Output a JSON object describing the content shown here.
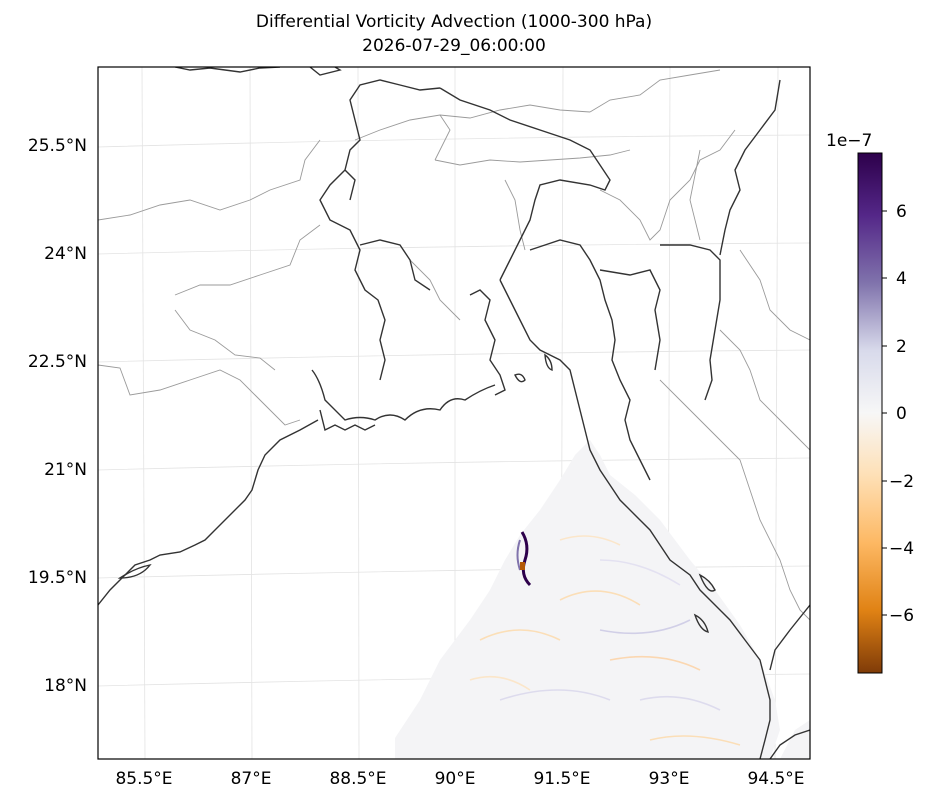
{
  "title": "Differential Vorticity Advection (1000-300 hPa)",
  "subtitle": "2026-07-29_06:00:00",
  "map": {
    "lon_labels": [
      "85.5°E",
      "87°E",
      "88.5°E",
      "90°E",
      "91.5°E",
      "93°E",
      "94.5°E"
    ],
    "lat_labels": [
      "25.5°N",
      "24°N",
      "22.5°N",
      "21°N",
      "19.5°N",
      "18°N"
    ]
  },
  "colorbar": {
    "exponent": "1e−7",
    "ticks": [
      "6",
      "4",
      "2",
      "0",
      "−2",
      "−4",
      "−6"
    ],
    "colors": {
      "top": "#2d004b",
      "mid": "#f7f7f7",
      "bottom": "#7f3b08"
    }
  }
}
